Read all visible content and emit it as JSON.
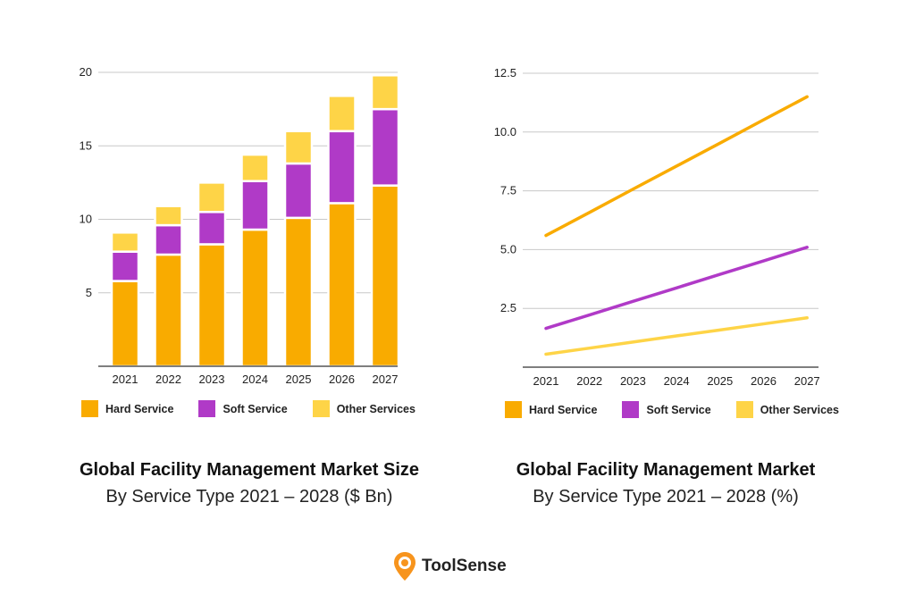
{
  "colors": {
    "hard": "#F9AB00",
    "soft": "#B03AC7",
    "other": "#FED447",
    "grid": "#c8c8c8",
    "axis": "#333333"
  },
  "chart_data": [
    {
      "type": "bar",
      "stacked": true,
      "title": "Global Facility Management Market Size",
      "subtitle": "By Service Type 2021 – 2028 ($ Bn)",
      "categories": [
        "2021",
        "2022",
        "2023",
        "2024",
        "2025",
        "2026",
        "2027"
      ],
      "series": [
        {
          "name": "Hard Service",
          "color": "#F9AB00",
          "values": [
            5.8,
            7.6,
            8.3,
            9.3,
            10.1,
            11.1,
            12.3
          ]
        },
        {
          "name": "Soft Service",
          "color": "#B03AC7",
          "values": [
            2.0,
            2.0,
            2.2,
            3.3,
            3.7,
            4.9,
            5.2
          ]
        },
        {
          "name": "Other Services",
          "color": "#FED447",
          "values": [
            1.3,
            1.3,
            2.0,
            1.8,
            2.2,
            2.4,
            2.3
          ]
        }
      ],
      "yticks": [
        "5",
        "10",
        "15",
        "20"
      ],
      "ylim": [
        0,
        20
      ],
      "grid": true,
      "legend": "bottom"
    },
    {
      "type": "line",
      "title": "Global Facility Management Market",
      "subtitle": "By Service Type 2021 – 2028 (%)",
      "categories": [
        "2021",
        "2022",
        "2023",
        "2024",
        "2025",
        "2026",
        "2027"
      ],
      "series": [
        {
          "name": "Hard Service",
          "color": "#F9AB00",
          "values": [
            5.6,
            6.58,
            7.57,
            8.55,
            9.53,
            10.52,
            11.5
          ]
        },
        {
          "name": "Soft Service",
          "color": "#B03AC7",
          "values": [
            1.65,
            2.22,
            2.8,
            3.37,
            3.95,
            4.52,
            5.1
          ]
        },
        {
          "name": "Other Services",
          "color": "#FED447",
          "values": [
            0.55,
            0.81,
            1.07,
            1.33,
            1.58,
            1.84,
            2.1
          ]
        }
      ],
      "yticks": [
        "2.5",
        "5.0",
        "7.5",
        "10.0",
        "12.5"
      ],
      "ylim": [
        0,
        12.5
      ],
      "grid": true,
      "legend": "bottom"
    }
  ],
  "brand": {
    "name": "ToolSense"
  }
}
